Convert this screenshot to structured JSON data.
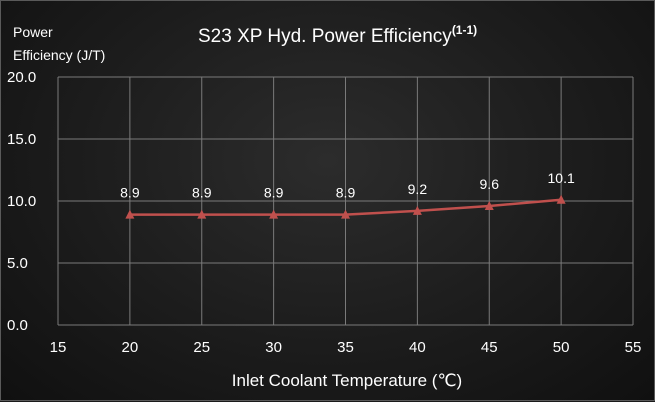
{
  "chart_data": {
    "type": "line",
    "title": "S23 XP Hyd. Power Efficiency",
    "title_superscript": "(1-1)",
    "ylabel_lines": [
      "Power",
      "Efficiency (J/T)"
    ],
    "xlabel": "Inlet Coolant Temperature (℃)",
    "xlim": [
      15,
      55
    ],
    "ylim": [
      0,
      20
    ],
    "x_ticks": [
      15,
      20,
      25,
      30,
      35,
      40,
      45,
      50,
      55
    ],
    "x_tick_labels": [
      "15",
      "20",
      "25",
      "30",
      "35",
      "40",
      "45",
      "50",
      "55"
    ],
    "y_ticks": [
      0,
      5,
      10,
      15,
      20
    ],
    "y_tick_labels": [
      "0.0",
      "5.0",
      "10.0",
      "15.0",
      "20.0"
    ],
    "grid": true,
    "series": [
      {
        "x": [
          20,
          25,
          30,
          35,
          40,
          45,
          50
        ],
        "values": [
          8.9,
          8.9,
          8.9,
          8.9,
          9.2,
          9.6,
          10.1
        ],
        "labels": [
          "8.9",
          "8.9",
          "8.9",
          "8.9",
          "9.2",
          "9.6",
          "10.1"
        ],
        "color": "#c0504d",
        "marker": "triangle"
      }
    ],
    "colors": {
      "grid": "#7a7a7a",
      "text": "#ffffff"
    }
  }
}
